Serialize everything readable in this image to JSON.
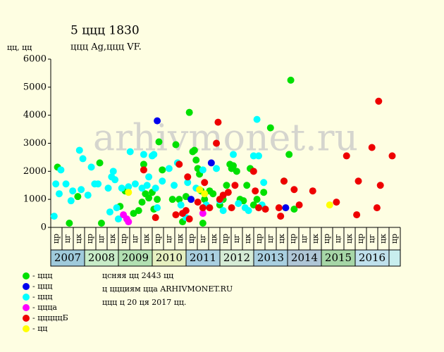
{
  "chart_data": {
    "type": "scatter",
    "title": "5 ццц 1830",
    "subtitle": "ццц Ag,ццц VF.",
    "y_label": "цц, цц",
    "watermark": "arhivmonet.ru",
    "notes": [
      "цсняя цц 2443 цц",
      "ц ццциям цца ARHIVMONET.RU",
      "ццц ц 20 ця 2017 цц."
    ],
    "xlim": [
      2007,
      2017.34
    ],
    "ylim": [
      0,
      6000
    ],
    "yticks": [
      0,
      1000,
      2000,
      3000,
      4000,
      5000,
      6000
    ],
    "grid": false,
    "year_labels": [
      "2007",
      "2008",
      "2009",
      "2010",
      "2011",
      "2012",
      "2013",
      "2014",
      "2015",
      "2016"
    ],
    "year_colors": [
      "#9fcadb",
      "#c8ecc8",
      "#b2e0b2",
      "#e6f0c0",
      "#a9cfe0",
      "#d6ecd6",
      "#a9cfe0",
      "#afc6d6",
      "#a6d6a6",
      "#bfe0ec",
      "#c8eeee"
    ],
    "column_labels": [
      "цр",
      "цг",
      "цк",
      "цр",
      "цг",
      "цк",
      "цр",
      "цг",
      "цк",
      "цр",
      "цг",
      "цк",
      "цр",
      "цг",
      "цк",
      "цр",
      "цг",
      "цк",
      "цр",
      "цг",
      "цк",
      "цр",
      "цг",
      "цк",
      "цр",
      "цг",
      "цк",
      "цр",
      "цг",
      "цк",
      "цр"
    ],
    "series": [
      {
        "name": "- ццц",
        "color": "#00e000",
        "points": [
          [
            2007.2,
            2150
          ],
          [
            2007.55,
            150
          ],
          [
            2007.8,
            1100
          ],
          [
            2008.5,
            150
          ],
          [
            2008.45,
            2300
          ],
          [
            2009.05,
            750
          ],
          [
            2009.2,
            1300
          ],
          [
            2009.45,
            500
          ],
          [
            2009.6,
            600
          ],
          [
            2009.7,
            900
          ],
          [
            2009.75,
            2250
          ],
          [
            2009.8,
            1200
          ],
          [
            2009.9,
            1050
          ],
          [
            2010.0,
            1250
          ],
          [
            2010.05,
            650
          ],
          [
            2010.15,
            1000
          ],
          [
            2010.2,
            3050
          ],
          [
            2010.3,
            2050
          ],
          [
            2010.6,
            1000
          ],
          [
            2010.7,
            2950
          ],
          [
            2010.8,
            1000
          ],
          [
            2010.9,
            200
          ],
          [
            2011.0,
            1100
          ],
          [
            2011.1,
            4100
          ],
          [
            2011.2,
            2700
          ],
          [
            2011.25,
            2750
          ],
          [
            2011.3,
            2400
          ],
          [
            2011.35,
            2100
          ],
          [
            2011.4,
            1900
          ],
          [
            2011.45,
            1300
          ],
          [
            2011.5,
            150
          ],
          [
            2011.55,
            1000
          ],
          [
            2011.7,
            1300
          ],
          [
            2011.8,
            1200
          ],
          [
            2012.0,
            800
          ],
          [
            2012.1,
            1000
          ],
          [
            2012.2,
            1500
          ],
          [
            2012.3,
            2250
          ],
          [
            2012.35,
            2100
          ],
          [
            2012.4,
            2200
          ],
          [
            2012.5,
            2000
          ],
          [
            2012.6,
            1000
          ],
          [
            2012.7,
            950
          ],
          [
            2012.8,
            1500
          ],
          [
            2012.9,
            2100
          ],
          [
            2013.0,
            800
          ],
          [
            2013.1,
            1000
          ],
          [
            2013.3,
            1250
          ],
          [
            2013.5,
            3550
          ],
          [
            2013.9,
            1650
          ],
          [
            2014.05,
            2600
          ],
          [
            2014.1,
            5250
          ],
          [
            2014.2,
            650
          ]
        ]
      },
      {
        "name": "- ццц",
        "color": "#0000ee",
        "points": [
          [
            2010.15,
            3800
          ],
          [
            2011.15,
            1000
          ],
          [
            2011.75,
            2300
          ],
          [
            2013.95,
            700
          ]
        ]
      },
      {
        "name": "- ццц",
        "color": "#00ffff",
        "points": [
          [
            2007.1,
            400
          ],
          [
            2007.15,
            1550
          ],
          [
            2007.25,
            1200
          ],
          [
            2007.3,
            2050
          ],
          [
            2007.45,
            1550
          ],
          [
            2007.6,
            950
          ],
          [
            2007.65,
            1300
          ],
          [
            2007.85,
            2750
          ],
          [
            2007.9,
            1350
          ],
          [
            2007.95,
            2450
          ],
          [
            2008.1,
            1150
          ],
          [
            2008.2,
            2150
          ],
          [
            2008.3,
            1550
          ],
          [
            2008.4,
            1550
          ],
          [
            2008.7,
            1400
          ],
          [
            2008.75,
            550
          ],
          [
            2008.8,
            1800
          ],
          [
            2008.85,
            2000
          ],
          [
            2008.9,
            1700
          ],
          [
            2008.95,
            700
          ],
          [
            2009.0,
            300
          ],
          [
            2009.1,
            1400
          ],
          [
            2009.3,
            1450
          ],
          [
            2009.35,
            2700
          ],
          [
            2009.5,
            1550
          ],
          [
            2009.7,
            1400
          ],
          [
            2009.75,
            2600
          ],
          [
            2009.85,
            1500
          ],
          [
            2009.9,
            1800
          ],
          [
            2010.0,
            2550
          ],
          [
            2010.05,
            2600
          ],
          [
            2010.1,
            1400
          ],
          [
            2010.15,
            700
          ],
          [
            2010.3,
            1650
          ],
          [
            2010.5,
            2100
          ],
          [
            2010.65,
            1500
          ],
          [
            2010.75,
            2300
          ],
          [
            2010.85,
            800
          ],
          [
            2011.0,
            350
          ],
          [
            2011.05,
            1600
          ],
          [
            2011.3,
            1400
          ],
          [
            2011.5,
            2050
          ],
          [
            2011.6,
            800
          ],
          [
            2011.9,
            2100
          ],
          [
            2012.0,
            950
          ],
          [
            2012.1,
            600
          ],
          [
            2012.4,
            2600
          ],
          [
            2012.55,
            850
          ],
          [
            2012.75,
            700
          ],
          [
            2012.85,
            600
          ],
          [
            2013.0,
            2550
          ],
          [
            2013.1,
            3850
          ],
          [
            2013.15,
            2550
          ],
          [
            2013.25,
            800
          ],
          [
            2013.3,
            1600
          ]
        ]
      },
      {
        "name": "- цццa",
        "color": "#ff00ff",
        "points": [
          [
            2009.15,
            450
          ],
          [
            2009.25,
            300
          ],
          [
            2009.3,
            200
          ],
          [
            2011.5,
            500
          ]
        ]
      },
      {
        "name": "- цццццБ",
        "color": "#ee0000",
        "points": [
          [
            2009.75,
            2050
          ],
          [
            2010.1,
            350
          ],
          [
            2010.7,
            450
          ],
          [
            2010.8,
            2250
          ],
          [
            2010.9,
            500
          ],
          [
            2011.0,
            600
          ],
          [
            2011.05,
            1800
          ],
          [
            2011.1,
            300
          ],
          [
            2011.35,
            900
          ],
          [
            2011.5,
            700
          ],
          [
            2011.55,
            1600
          ],
          [
            2011.7,
            700
          ],
          [
            2011.9,
            3000
          ],
          [
            2011.95,
            3750
          ],
          [
            2012.0,
            1000
          ],
          [
            2012.1,
            1150
          ],
          [
            2012.25,
            1250
          ],
          [
            2012.35,
            700
          ],
          [
            2012.45,
            1500
          ],
          [
            2013.0,
            2000
          ],
          [
            2013.05,
            1300
          ],
          [
            2013.15,
            700
          ],
          [
            2013.35,
            650
          ],
          [
            2013.75,
            700
          ],
          [
            2013.8,
            400
          ],
          [
            2013.9,
            1650
          ],
          [
            2014.2,
            1350
          ],
          [
            2014.35,
            800
          ],
          [
            2014.75,
            1300
          ],
          [
            2015.45,
            900
          ],
          [
            2015.75,
            2550
          ],
          [
            2016.05,
            450
          ],
          [
            2016.1,
            1650
          ],
          [
            2016.5,
            2850
          ],
          [
            2016.65,
            700
          ],
          [
            2016.7,
            4500
          ],
          [
            2016.75,
            1500
          ],
          [
            2017.1,
            2550
          ]
        ]
      },
      {
        "name": "- цц",
        "color": "#ffff00",
        "points": [
          [
            2009.3,
            1250
          ],
          [
            2011.4,
            1350
          ],
          [
            2011.55,
            1200
          ],
          [
            2015.25,
            800
          ]
        ]
      }
    ]
  }
}
